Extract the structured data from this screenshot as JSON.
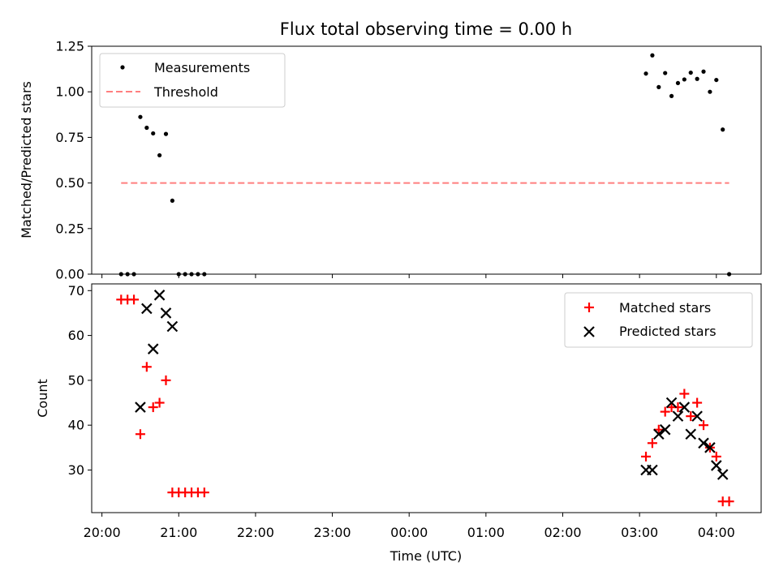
{
  "figure_title": "Flux total observing time = 0.00 h",
  "colors": {
    "matched": "#ff0000",
    "predicted": "#000000",
    "threshold": "#ff7f7f",
    "measurements": "#000000"
  },
  "chart_data": [
    {
      "type": "scatter",
      "title": "Flux total observing time = 0.00 h",
      "xlabel": "",
      "ylabel": "Matched/Predicted stars",
      "ylim": [
        0,
        1.25
      ],
      "xlim": [
        "19:52",
        "04:35"
      ],
      "yticks": [
        "0.00",
        "0.25",
        "0.50",
        "0.75",
        "1.00",
        "1.25"
      ],
      "legend_position": "top-left",
      "series": [
        {
          "name": "Measurements",
          "marker": "dot",
          "points": [
            {
              "x": "20:15",
              "y": 0.0
            },
            {
              "x": "20:20",
              "y": 0.0
            },
            {
              "x": "20:25",
              "y": 0.0
            },
            {
              "x": "20:30",
              "y": 0.862
            },
            {
              "x": "20:35",
              "y": 0.803
            },
            {
              "x": "20:40",
              "y": 0.772
            },
            {
              "x": "20:45",
              "y": 0.652
            },
            {
              "x": "20:50",
              "y": 0.769
            },
            {
              "x": "20:55",
              "y": 0.403
            },
            {
              "x": "21:00",
              "y": 0.0
            },
            {
              "x": "21:05",
              "y": 0.0
            },
            {
              "x": "21:10",
              "y": 0.0
            },
            {
              "x": "21:15",
              "y": 0.0
            },
            {
              "x": "21:20",
              "y": 0.0
            },
            {
              "x": "03:05",
              "y": 1.1
            },
            {
              "x": "03:10",
              "y": 1.2
            },
            {
              "x": "03:15",
              "y": 1.026
            },
            {
              "x": "03:20",
              "y": 1.103
            },
            {
              "x": "03:25",
              "y": 0.977
            },
            {
              "x": "03:30",
              "y": 1.048
            },
            {
              "x": "03:35",
              "y": 1.068
            },
            {
              "x": "03:40",
              "y": 1.105
            },
            {
              "x": "03:45",
              "y": 1.071
            },
            {
              "x": "03:50",
              "y": 1.111
            },
            {
              "x": "03:55",
              "y": 1.0
            },
            {
              "x": "04:00",
              "y": 1.065
            },
            {
              "x": "04:05",
              "y": 0.793
            },
            {
              "x": "04:10",
              "y": 0.0
            }
          ]
        },
        {
          "name": "Threshold",
          "marker": "dashed-line",
          "points": [
            {
              "x": "20:15",
              "y": 0.5
            },
            {
              "x": "04:10",
              "y": 0.5
            }
          ]
        }
      ]
    },
    {
      "type": "scatter",
      "title": "",
      "xlabel": "Time (UTC)",
      "ylabel": "Count",
      "ylim": [
        20.5,
        71.5
      ],
      "xlim": [
        "19:52",
        "04:35"
      ],
      "yticks": [
        "30",
        "40",
        "50",
        "60",
        "70"
      ],
      "xticks": [
        "20:00",
        "21:00",
        "22:00",
        "23:00",
        "00:00",
        "01:00",
        "02:00",
        "03:00",
        "04:00"
      ],
      "legend_position": "top-right",
      "series": [
        {
          "name": "Matched stars",
          "marker": "plus",
          "points": [
            {
              "x": "20:15",
              "y": 68
            },
            {
              "x": "20:20",
              "y": 68
            },
            {
              "x": "20:25",
              "y": 68
            },
            {
              "x": "20:30",
              "y": 38
            },
            {
              "x": "20:35",
              "y": 53
            },
            {
              "x": "20:40",
              "y": 44
            },
            {
              "x": "20:45",
              "y": 45
            },
            {
              "x": "20:50",
              "y": 50
            },
            {
              "x": "20:55",
              "y": 25
            },
            {
              "x": "21:00",
              "y": 25
            },
            {
              "x": "21:05",
              "y": 25
            },
            {
              "x": "21:10",
              "y": 25
            },
            {
              "x": "21:15",
              "y": 25
            },
            {
              "x": "21:20",
              "y": 25
            },
            {
              "x": "03:05",
              "y": 33
            },
            {
              "x": "03:10",
              "y": 36
            },
            {
              "x": "03:15",
              "y": 39
            },
            {
              "x": "03:20",
              "y": 43
            },
            {
              "x": "03:25",
              "y": 44
            },
            {
              "x": "03:30",
              "y": 44
            },
            {
              "x": "03:35",
              "y": 47
            },
            {
              "x": "03:40",
              "y": 42
            },
            {
              "x": "03:45",
              "y": 45
            },
            {
              "x": "03:50",
              "y": 40
            },
            {
              "x": "03:55",
              "y": 35
            },
            {
              "x": "04:00",
              "y": 33
            },
            {
              "x": "04:05",
              "y": 23
            },
            {
              "x": "04:10",
              "y": 23
            }
          ]
        },
        {
          "name": "Predicted stars",
          "marker": "x",
          "points": [
            {
              "x": "20:30",
              "y": 44
            },
            {
              "x": "20:35",
              "y": 66
            },
            {
              "x": "20:40",
              "y": 57
            },
            {
              "x": "20:45",
              "y": 69
            },
            {
              "x": "20:50",
              "y": 65
            },
            {
              "x": "20:55",
              "y": 62
            },
            {
              "x": "03:05",
              "y": 30
            },
            {
              "x": "03:10",
              "y": 30
            },
            {
              "x": "03:15",
              "y": 38
            },
            {
              "x": "03:20",
              "y": 39
            },
            {
              "x": "03:25",
              "y": 45
            },
            {
              "x": "03:30",
              "y": 42
            },
            {
              "x": "03:35",
              "y": 44
            },
            {
              "x": "03:40",
              "y": 38
            },
            {
              "x": "03:45",
              "y": 42
            },
            {
              "x": "03:50",
              "y": 36
            },
            {
              "x": "03:55",
              "y": 35
            },
            {
              "x": "04:00",
              "y": 31
            },
            {
              "x": "04:05",
              "y": 29
            }
          ]
        }
      ]
    }
  ]
}
